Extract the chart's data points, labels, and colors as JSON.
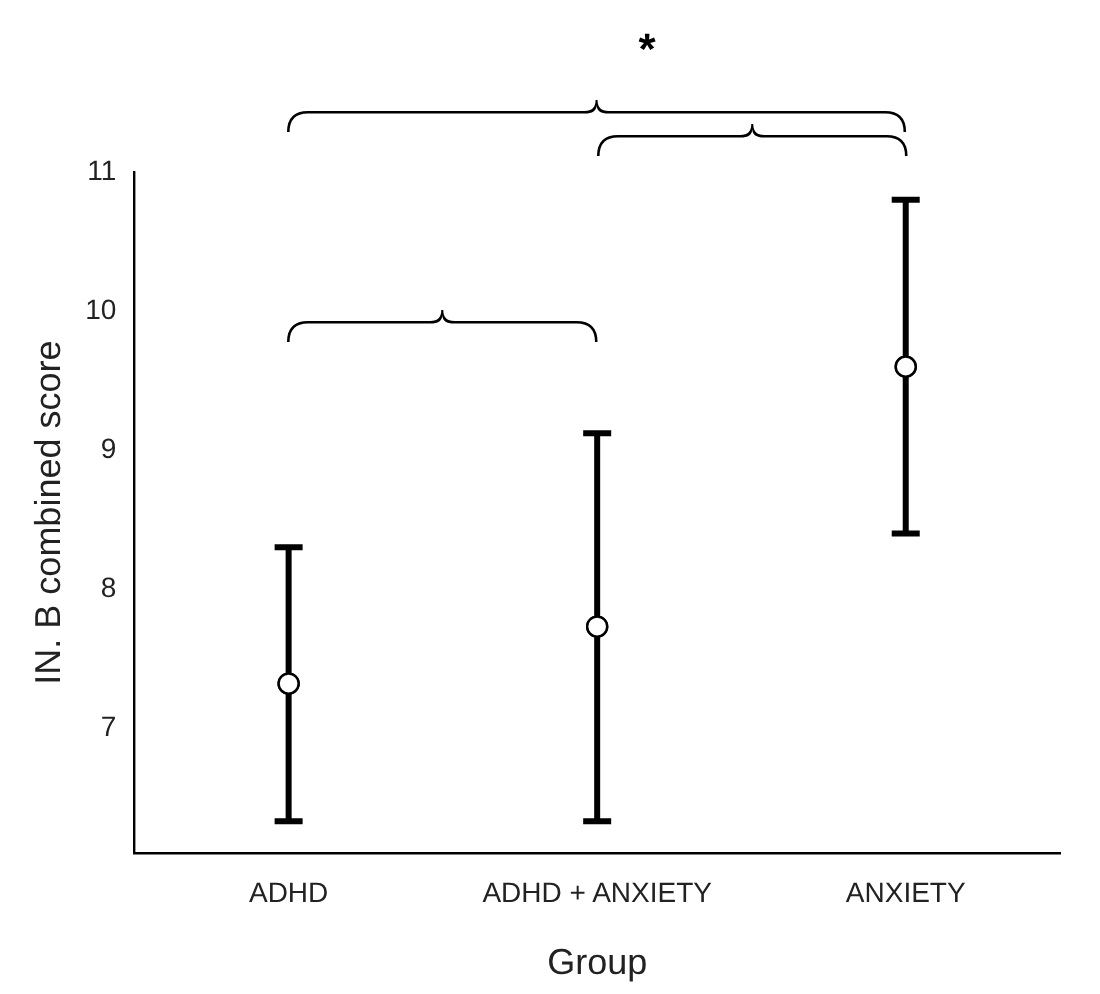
{
  "chart_data": {
    "type": "scatter",
    "xlabel": "Group",
    "ylabel": "IN. B combined score",
    "categories": [
      "ADHD",
      "ADHD + ANXIETY",
      "ANXIETY"
    ],
    "values": [
      7.32,
      7.73,
      9.6
    ],
    "errors": [
      [
        6.33,
        8.3
      ],
      [
        6.33,
        9.12
      ],
      [
        8.4,
        10.8
      ]
    ],
    "color": "#000000",
    "marker": "circle",
    "ylim": [
      6.1,
      11
    ],
    "yticks": [
      7,
      8,
      9,
      10,
      11
    ],
    "grid": false,
    "legend": false,
    "annotations": [
      "*"
    ]
  }
}
